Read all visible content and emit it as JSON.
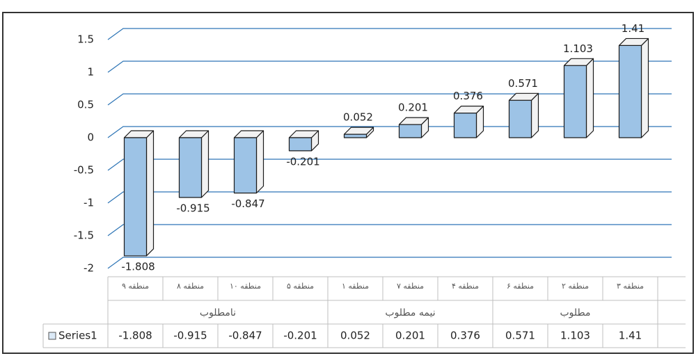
{
  "chart_data": {
    "type": "bar3d",
    "groups": [
      {
        "name": "نامطلوب",
        "categories": [
          "منطقه ۹",
          "منطقه ۸",
          "منطقه ۱۰",
          "منطقه ۵"
        ]
      },
      {
        "name": "نیمه مطلوب",
        "categories": [
          "منطقه ۱",
          "منطقه ۷",
          "منطقه ۴"
        ]
      },
      {
        "name": "مطلوب",
        "categories": [
          "منطقه ۶",
          "منطقه ۲",
          "منطقه ۳"
        ]
      }
    ],
    "series": [
      {
        "name": "Series1",
        "color": "#9dc3e6",
        "values": [
          -1.808,
          -0.915,
          -0.847,
          -0.201,
          0.052,
          0.201,
          0.376,
          0.571,
          1.103,
          1.41
        ]
      }
    ],
    "ylim": [
      -2,
      1.5
    ],
    "yticks": [
      -2,
      -1.5,
      -1,
      -0.5,
      0,
      0.5,
      1,
      1.5
    ],
    "grid": true
  }
}
